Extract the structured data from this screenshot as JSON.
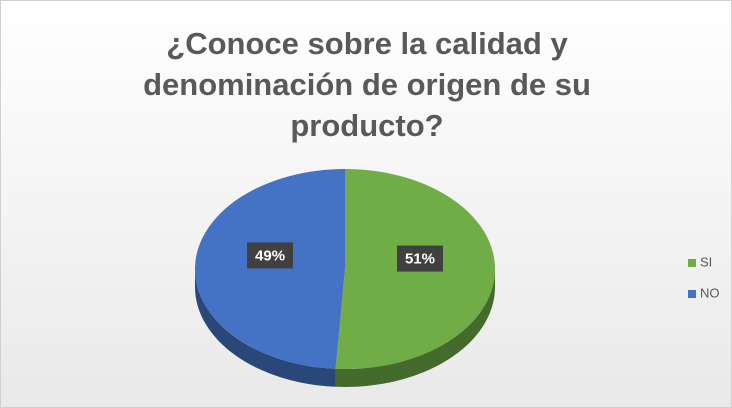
{
  "chart_data": {
    "type": "pie",
    "title": "¿Conoce sobre la calidad y denominación de origen de su producto?",
    "categories": [
      "SI",
      "NO"
    ],
    "values": [
      51,
      49
    ],
    "value_labels": [
      "51%",
      "49%"
    ],
    "colors": [
      "#70ad47",
      "#4472c4"
    ],
    "legend": "right"
  }
}
